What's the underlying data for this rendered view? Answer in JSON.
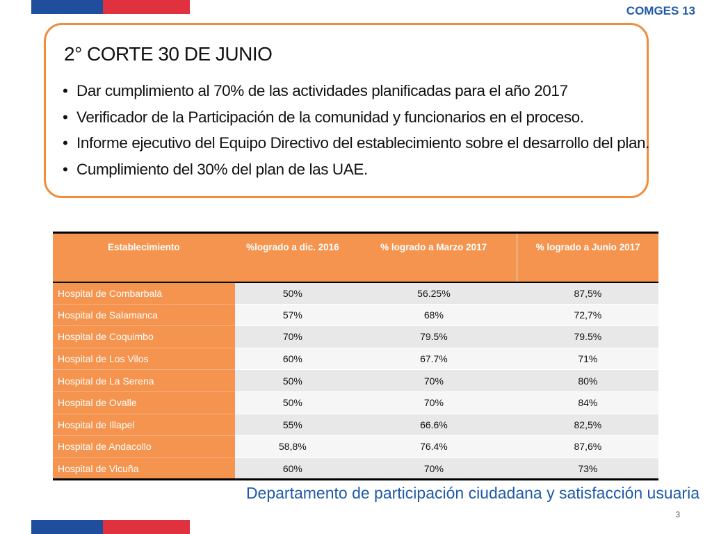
{
  "header": {
    "tag": "COMGES 13"
  },
  "colors": {
    "flag_blue": "#1f4e9c",
    "flag_red": "#e0313f",
    "accent_orange": "#f5944e",
    "footer_blue": "#1f5aa8"
  },
  "callout": {
    "title": "2° CORTE 30 DE JUNIO",
    "bullet_glyph": "•",
    "bullets": [
      "Dar cumplimiento al 70% de las actividades planificadas para el año 2017",
      "Verificador de la Participación de la comunidad y funcionarios en el proceso.",
      "Informe ejecutivo del Equipo Directivo del establecimiento sobre el desarrollo del plan.",
      "Cumplimiento del 30% del plan de las UAE."
    ]
  },
  "table": {
    "headers": [
      "Establecimiento",
      "%logrado a dic. 2016",
      "% logrado a Marzo 2017",
      "% logrado a Junio 2017"
    ],
    "rows": [
      [
        "Hospital de Combarbalá",
        "50%",
        "56.25%",
        "87,5%"
      ],
      [
        "Hospital de Salamanca",
        "57%",
        "68%",
        "72,7%"
      ],
      [
        "Hospital de Coquimbo",
        "70%",
        "79.5%",
        "79.5%"
      ],
      [
        "Hospital de Los Vilos",
        "60%",
        "67.7%",
        "71%"
      ],
      [
        "Hospital de La Serena",
        "50%",
        "70%",
        "80%"
      ],
      [
        "Hospital de Ovalle",
        "50%",
        "70%",
        "84%"
      ],
      [
        "Hospital de Illapel",
        "55%",
        "66.6%",
        "82,5%"
      ],
      [
        "Hospital de Andacollo",
        "58,8%",
        "76.4%",
        "87,6%"
      ],
      [
        "Hospital de Vicuña",
        "60%",
        "70%",
        "73%"
      ]
    ]
  },
  "footer": {
    "department": "Departamento de participación ciudadana y satisfacción usuaria",
    "page_number": "3"
  }
}
